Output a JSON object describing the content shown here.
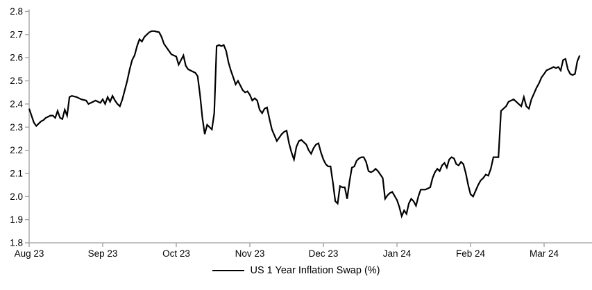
{
  "chart_data": {
    "type": "line",
    "title": "",
    "grid": false,
    "background_color": "#ffffff",
    "axis_color": "#9e9e9e",
    "legend": {
      "label": "US 1 Year Inflation Swap (%)",
      "position": "bottom-center",
      "marker": "solid-black-line"
    },
    "x_axis": {
      "tick_labels": [
        "Aug 23",
        "Sep 23",
        "Oct 23",
        "Nov 23",
        "Dec 23",
        "Jan 24",
        "Feb 24",
        "Mar 24"
      ],
      "start_date": "2023-08-01",
      "end_date": "2024-03-16"
    },
    "y_axis": {
      "min": 1.8,
      "max": 2.8,
      "step": 0.1,
      "tick_labels": [
        "1.8",
        "1.9",
        "2.0",
        "2.1",
        "2.2",
        "2.3",
        "2.4",
        "2.5",
        "2.6",
        "2.7",
        "2.8"
      ]
    },
    "series": [
      {
        "name": "US 1 Year Inflation Swap (%)",
        "color": "#000000",
        "points": [
          [
            "2023-08-01",
            2.38
          ],
          [
            "2023-08-02",
            2.35
          ],
          [
            "2023-08-03",
            2.32
          ],
          [
            "2023-08-04",
            2.305
          ],
          [
            "2023-08-05",
            2.315
          ],
          [
            "2023-08-06",
            2.325
          ],
          [
            "2023-08-07",
            2.33
          ],
          [
            "2023-08-08",
            2.34
          ],
          [
            "2023-08-10",
            2.35
          ],
          [
            "2023-08-11",
            2.35
          ],
          [
            "2023-08-12",
            2.34
          ],
          [
            "2023-08-13",
            2.37
          ],
          [
            "2023-08-14",
            2.34
          ],
          [
            "2023-08-15",
            2.335
          ],
          [
            "2023-08-16",
            2.375
          ],
          [
            "2023-08-17",
            2.35
          ],
          [
            "2023-08-18",
            2.43
          ],
          [
            "2023-08-19",
            2.435
          ],
          [
            "2023-08-21",
            2.43
          ],
          [
            "2023-08-23",
            2.42
          ],
          [
            "2023-08-25",
            2.415
          ],
          [
            "2023-08-26",
            2.4
          ],
          [
            "2023-08-28",
            2.41
          ],
          [
            "2023-08-29",
            2.415
          ],
          [
            "2023-08-30",
            2.41
          ],
          [
            "2023-08-31",
            2.405
          ],
          [
            "2023-09-01",
            2.42
          ],
          [
            "2023-09-02",
            2.4
          ],
          [
            "2023-09-03",
            2.43
          ],
          [
            "2023-09-04",
            2.41
          ],
          [
            "2023-09-05",
            2.435
          ],
          [
            "2023-09-06",
            2.415
          ],
          [
            "2023-09-07",
            2.4
          ],
          [
            "2023-09-08",
            2.39
          ],
          [
            "2023-09-09",
            2.42
          ],
          [
            "2023-09-10",
            2.46
          ],
          [
            "2023-09-11",
            2.5
          ],
          [
            "2023-09-12",
            2.55
          ],
          [
            "2023-09-13",
            2.59
          ],
          [
            "2023-09-14",
            2.61
          ],
          [
            "2023-09-15",
            2.65
          ],
          [
            "2023-09-16",
            2.68
          ],
          [
            "2023-09-17",
            2.67
          ],
          [
            "2023-09-18",
            2.69
          ],
          [
            "2023-09-19",
            2.7
          ],
          [
            "2023-09-20",
            2.71
          ],
          [
            "2023-09-21",
            2.715
          ],
          [
            "2023-09-22",
            2.715
          ],
          [
            "2023-09-24",
            2.71
          ],
          [
            "2023-09-25",
            2.69
          ],
          [
            "2023-09-26",
            2.66
          ],
          [
            "2023-09-28",
            2.63
          ],
          [
            "2023-09-29",
            2.615
          ],
          [
            "2023-10-01",
            2.605
          ],
          [
            "2023-10-02",
            2.57
          ],
          [
            "2023-10-04",
            2.61
          ],
          [
            "2023-10-05",
            2.565
          ],
          [
            "2023-10-06",
            2.55
          ],
          [
            "2023-10-08",
            2.54
          ],
          [
            "2023-10-09",
            2.535
          ],
          [
            "2023-10-10",
            2.52
          ],
          [
            "2023-10-11",
            2.44
          ],
          [
            "2023-10-12",
            2.34
          ],
          [
            "2023-10-13",
            2.27
          ],
          [
            "2023-10-14",
            2.31
          ],
          [
            "2023-10-16",
            2.29
          ],
          [
            "2023-10-17",
            2.36
          ],
          [
            "2023-10-18",
            2.65
          ],
          [
            "2023-10-19",
            2.655
          ],
          [
            "2023-10-20",
            2.65
          ],
          [
            "2023-10-21",
            2.655
          ],
          [
            "2023-10-22",
            2.63
          ],
          [
            "2023-10-23",
            2.58
          ],
          [
            "2023-10-24",
            2.545
          ],
          [
            "2023-10-25",
            2.515
          ],
          [
            "2023-10-26",
            2.485
          ],
          [
            "2023-10-27",
            2.5
          ],
          [
            "2023-10-29",
            2.46
          ],
          [
            "2023-10-30",
            2.45
          ],
          [
            "2023-10-31",
            2.455
          ],
          [
            "2023-11-01",
            2.44
          ],
          [
            "2023-11-02",
            2.415
          ],
          [
            "2023-11-03",
            2.425
          ],
          [
            "2023-11-04",
            2.415
          ],
          [
            "2023-11-05",
            2.375
          ],
          [
            "2023-11-06",
            2.36
          ],
          [
            "2023-11-07",
            2.38
          ],
          [
            "2023-11-08",
            2.385
          ],
          [
            "2023-11-09",
            2.335
          ],
          [
            "2023-11-10",
            2.29
          ],
          [
            "2023-11-12",
            2.24
          ],
          [
            "2023-11-14",
            2.27
          ],
          [
            "2023-11-15",
            2.28
          ],
          [
            "2023-11-16",
            2.285
          ],
          [
            "2023-11-17",
            2.23
          ],
          [
            "2023-11-18",
            2.19
          ],
          [
            "2023-11-19",
            2.16
          ],
          [
            "2023-11-20",
            2.215
          ],
          [
            "2023-11-21",
            2.24
          ],
          [
            "2023-11-22",
            2.245
          ],
          [
            "2023-11-24",
            2.225
          ],
          [
            "2023-11-25",
            2.2
          ],
          [
            "2023-11-26",
            2.185
          ],
          [
            "2023-11-27",
            2.21
          ],
          [
            "2023-11-28",
            2.225
          ],
          [
            "2023-11-29",
            2.23
          ],
          [
            "2023-11-30",
            2.19
          ],
          [
            "2023-12-01",
            2.16
          ],
          [
            "2023-12-02",
            2.14
          ],
          [
            "2023-12-03",
            2.13
          ],
          [
            "2023-12-04",
            2.13
          ],
          [
            "2023-12-05",
            2.06
          ],
          [
            "2023-12-06",
            1.98
          ],
          [
            "2023-12-07",
            1.97
          ],
          [
            "2023-12-08",
            2.045
          ],
          [
            "2023-12-09",
            2.04
          ],
          [
            "2023-12-10",
            2.04
          ],
          [
            "2023-12-11",
            1.99
          ],
          [
            "2023-12-12",
            2.065
          ],
          [
            "2023-12-13",
            2.125
          ],
          [
            "2023-12-14",
            2.13
          ],
          [
            "2023-12-15",
            2.155
          ],
          [
            "2023-12-16",
            2.165
          ],
          [
            "2023-12-17",
            2.17
          ],
          [
            "2023-12-18",
            2.17
          ],
          [
            "2023-12-19",
            2.15
          ],
          [
            "2023-12-20",
            2.11
          ],
          [
            "2023-12-21",
            2.105
          ],
          [
            "2023-12-22",
            2.11
          ],
          [
            "2023-12-23",
            2.12
          ],
          [
            "2023-12-24",
            2.11
          ],
          [
            "2023-12-26",
            2.08
          ],
          [
            "2023-12-27",
            1.99
          ],
          [
            "2023-12-28",
            2.005
          ],
          [
            "2023-12-29",
            2.015
          ],
          [
            "2023-12-30",
            2.02
          ],
          [
            "2024-01-01",
            1.985
          ],
          [
            "2024-01-02",
            1.955
          ],
          [
            "2024-01-03",
            1.915
          ],
          [
            "2024-01-04",
            1.94
          ],
          [
            "2024-01-05",
            1.925
          ],
          [
            "2024-01-06",
            1.97
          ],
          [
            "2024-01-07",
            1.99
          ],
          [
            "2024-01-08",
            1.98
          ],
          [
            "2024-01-09",
            1.96
          ],
          [
            "2024-01-10",
            2.0
          ],
          [
            "2024-01-11",
            2.03
          ],
          [
            "2024-01-13",
            2.03
          ],
          [
            "2024-01-14",
            2.035
          ],
          [
            "2024-01-15",
            2.04
          ],
          [
            "2024-01-16",
            2.08
          ],
          [
            "2024-01-17",
            2.105
          ],
          [
            "2024-01-18",
            2.12
          ],
          [
            "2024-01-19",
            2.11
          ],
          [
            "2024-01-20",
            2.135
          ],
          [
            "2024-01-21",
            2.145
          ],
          [
            "2024-01-22",
            2.125
          ],
          [
            "2024-01-23",
            2.16
          ],
          [
            "2024-01-24",
            2.17
          ],
          [
            "2024-01-25",
            2.165
          ],
          [
            "2024-01-26",
            2.14
          ],
          [
            "2024-01-27",
            2.135
          ],
          [
            "2024-01-28",
            2.15
          ],
          [
            "2024-01-29",
            2.14
          ],
          [
            "2024-01-30",
            2.1
          ],
          [
            "2024-01-31",
            2.05
          ],
          [
            "2024-02-01",
            2.01
          ],
          [
            "2024-02-02",
            2.0
          ],
          [
            "2024-02-03",
            2.025
          ],
          [
            "2024-02-04",
            2.05
          ],
          [
            "2024-02-05",
            2.07
          ],
          [
            "2024-02-06",
            2.08
          ],
          [
            "2024-02-07",
            2.095
          ],
          [
            "2024-02-08",
            2.09
          ],
          [
            "2024-02-09",
            2.12
          ],
          [
            "2024-02-10",
            2.17
          ],
          [
            "2024-02-12",
            2.17
          ],
          [
            "2024-02-13",
            2.37
          ],
          [
            "2024-02-14",
            2.38
          ],
          [
            "2024-02-15",
            2.39
          ],
          [
            "2024-02-16",
            2.41
          ],
          [
            "2024-02-17",
            2.415
          ],
          [
            "2024-02-18",
            2.42
          ],
          [
            "2024-02-19",
            2.41
          ],
          [
            "2024-02-20",
            2.4
          ],
          [
            "2024-02-21",
            2.39
          ],
          [
            "2024-02-22",
            2.43
          ],
          [
            "2024-02-23",
            2.39
          ],
          [
            "2024-02-24",
            2.38
          ],
          [
            "2024-02-25",
            2.42
          ],
          [
            "2024-02-26",
            2.445
          ],
          [
            "2024-02-27",
            2.47
          ],
          [
            "2024-02-28",
            2.49
          ],
          [
            "2024-02-29",
            2.515
          ],
          [
            "2024-03-01",
            2.53
          ],
          [
            "2024-03-02",
            2.545
          ],
          [
            "2024-03-03",
            2.55
          ],
          [
            "2024-03-04",
            2.555
          ],
          [
            "2024-03-05",
            2.56
          ],
          [
            "2024-03-06",
            2.555
          ],
          [
            "2024-03-07",
            2.56
          ],
          [
            "2024-03-08",
            2.545
          ],
          [
            "2024-03-09",
            2.59
          ],
          [
            "2024-03-10",
            2.595
          ],
          [
            "2024-03-11",
            2.55
          ],
          [
            "2024-03-12",
            2.53
          ],
          [
            "2024-03-13",
            2.525
          ],
          [
            "2024-03-14",
            2.53
          ],
          [
            "2024-03-15",
            2.585
          ],
          [
            "2024-03-16",
            2.61
          ]
        ]
      }
    ]
  }
}
